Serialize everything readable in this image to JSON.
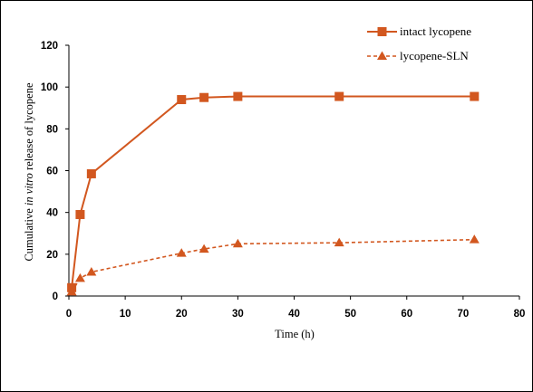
{
  "chart_data": {
    "type": "line",
    "xlabel": "Time  (h)",
    "ylabel_parts": [
      "Cumulative ",
      "in vitro",
      " release of lycopene"
    ],
    "xlim": [
      0,
      80
    ],
    "ylim": [
      0,
      120
    ],
    "xticks": [
      0,
      10,
      20,
      30,
      40,
      50,
      60,
      70,
      80
    ],
    "yticks": [
      0,
      20,
      40,
      60,
      80,
      100,
      120
    ],
    "grid": false,
    "legend_position": "top-right",
    "series": [
      {
        "name": "intact lycopene",
        "color": "#d2571f",
        "line_style": "solid",
        "marker": "square",
        "x": [
          0.5,
          2,
          4,
          20,
          24,
          30,
          48,
          72
        ],
        "y": [
          4,
          39,
          58.5,
          94,
          95,
          95.5,
          95.5,
          95.5
        ]
      },
      {
        "name": "lycopene-SLN",
        "color": "#d2571f",
        "line_style": "dashed",
        "marker": "triangle",
        "x": [
          0.5,
          2,
          4,
          20,
          24,
          30,
          48,
          72
        ],
        "y": [
          2,
          8.5,
          11.5,
          20.5,
          22.5,
          25,
          25.5,
          27
        ]
      }
    ]
  }
}
